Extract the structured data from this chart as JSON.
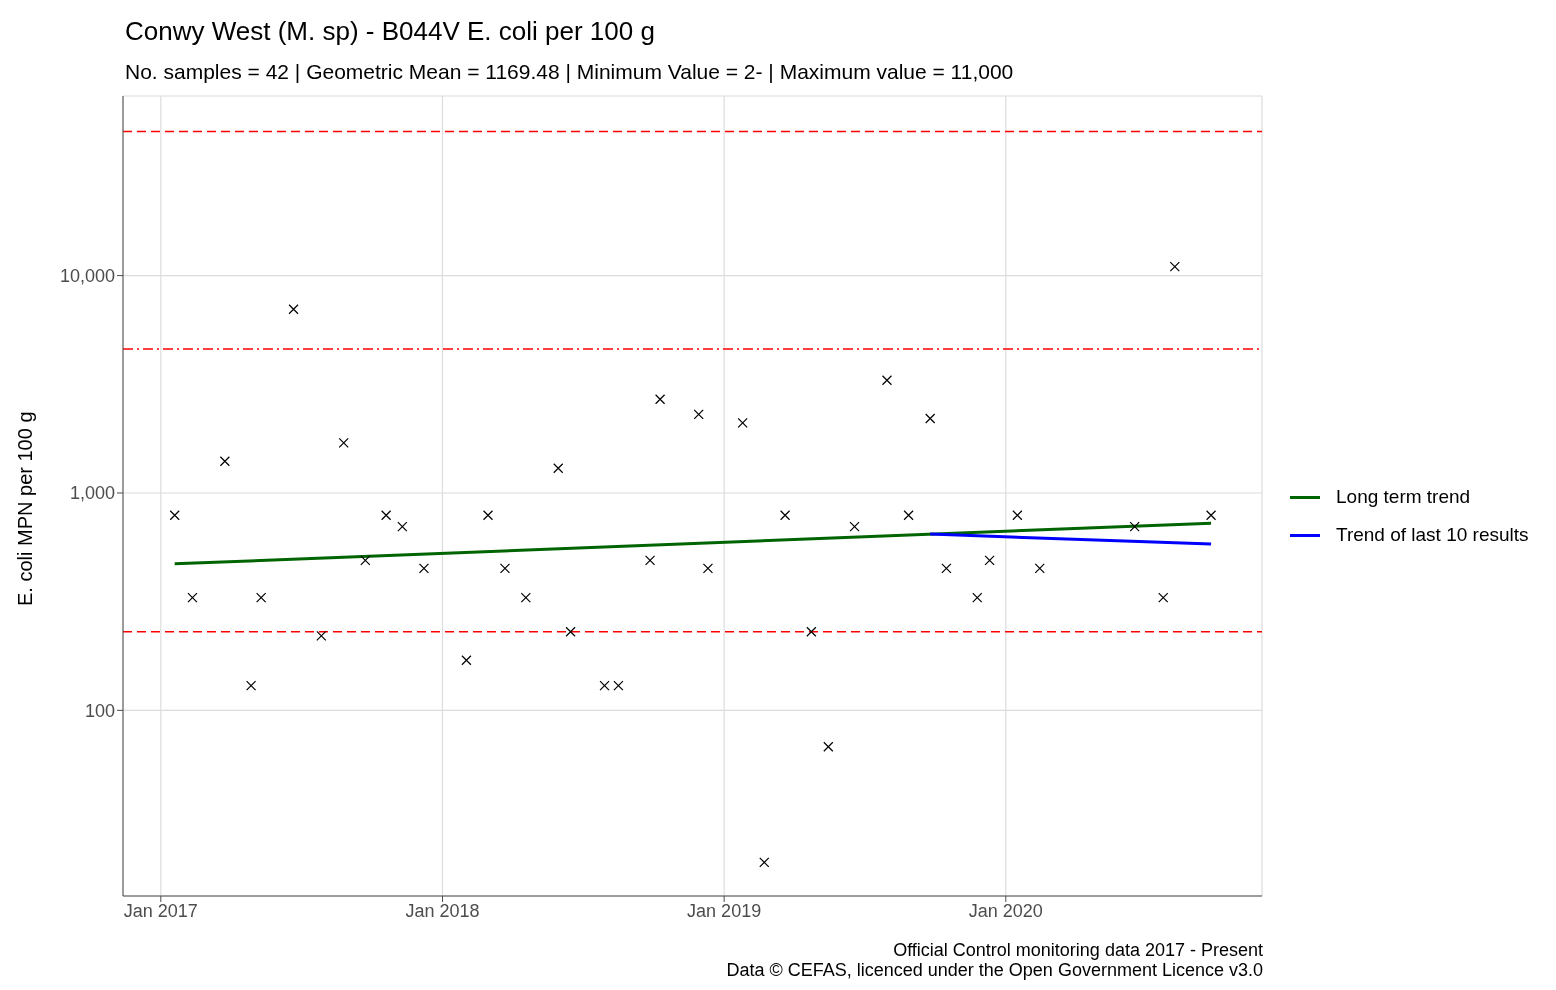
{
  "chart_data": {
    "type": "scatter",
    "title": "Conwy West (M. sp) - B044V E. coli per 100 g",
    "subtitle": "No. samples = 42 | Geometric Mean = 1169.48 | Minimum Value = 2- | Maximum value = 11,000",
    "ylabel": "E. coli MPN per 100 g",
    "log": "y",
    "grid": true,
    "legend": "right",
    "xlim": [
      "2016-11-13",
      "2020-11-28"
    ],
    "xticks": [
      {
        "value": "2017-01-01",
        "label": "Jan 2017"
      },
      {
        "value": "2018-01-01",
        "label": "Jan 2018"
      },
      {
        "value": "2019-01-01",
        "label": "Jan 2019"
      },
      {
        "value": "2020-01-01",
        "label": "Jan 2020"
      }
    ],
    "ylim": [
      14,
      67000
    ],
    "yticks": [
      {
        "value": 100,
        "label": "100"
      },
      {
        "value": 1000,
        "label": "1,000"
      },
      {
        "value": 10000,
        "label": "10,000"
      }
    ],
    "series": [
      {
        "marker": "cross",
        "color": "#000000",
        "x": [
          "2017-01-19",
          "2017-02-11",
          "2017-03-25",
          "2017-04-28",
          "2017-05-11",
          "2017-06-22",
          "2017-07-28",
          "2017-08-26",
          "2017-09-23",
          "2017-10-20",
          "2017-11-10",
          "2017-12-08",
          "2018-02-01",
          "2018-03-01",
          "2018-03-23",
          "2018-04-19",
          "2018-05-31",
          "2018-06-16",
          "2018-07-30",
          "2018-08-17",
          "2018-09-27",
          "2018-10-10",
          "2018-11-29",
          "2018-12-11",
          "2019-01-25",
          "2019-02-22",
          "2019-03-21",
          "2019-04-24",
          "2019-05-16",
          "2019-06-19",
          "2019-07-31",
          "2019-08-28",
          "2019-09-25",
          "2019-10-16",
          "2019-11-25",
          "2019-12-11",
          "2020-01-16",
          "2020-02-14",
          "2020-06-16",
          "2020-07-23",
          "2020-08-07",
          "2020-09-23"
        ],
        "values": [
          790,
          330,
          1400,
          130,
          330,
          7000,
          220,
          1700,
          490,
          790,
          700,
          450,
          170,
          790,
          450,
          330,
          1300,
          230,
          130,
          130,
          490,
          2700,
          2300,
          450,
          2100,
          20,
          790,
          230,
          68,
          700,
          3300,
          790,
          2200,
          450,
          330,
          490,
          790,
          450,
          700,
          330,
          11000,
          790
        ]
      },
      {
        "type": "line",
        "name": "Long term trend",
        "color": "#006400",
        "x": [
          "2017-01-19",
          "2020-09-23"
        ],
        "values": [
          472,
          726
        ]
      },
      {
        "type": "line",
        "name": "Trend of last 10 results",
        "color": "#0000ff",
        "x": [
          "2019-09-25",
          "2020-09-23"
        ],
        "values": [
          647,
          582
        ]
      }
    ],
    "ref_lines": [
      {
        "axis": "y",
        "value": 46000,
        "color": "#ff0000",
        "line_style": "dashed"
      },
      {
        "axis": "y",
        "value": 4600,
        "color": "#ff0000",
        "line_style": "dashdot"
      },
      {
        "axis": "y",
        "value": 230,
        "color": "#ff0000",
        "line_style": "dashed"
      }
    ],
    "annotations": [
      "Official Control monitoring data 2017 - Present",
      "Data © CEFAS, licenced under the Open Government Licence v3.0"
    ]
  }
}
